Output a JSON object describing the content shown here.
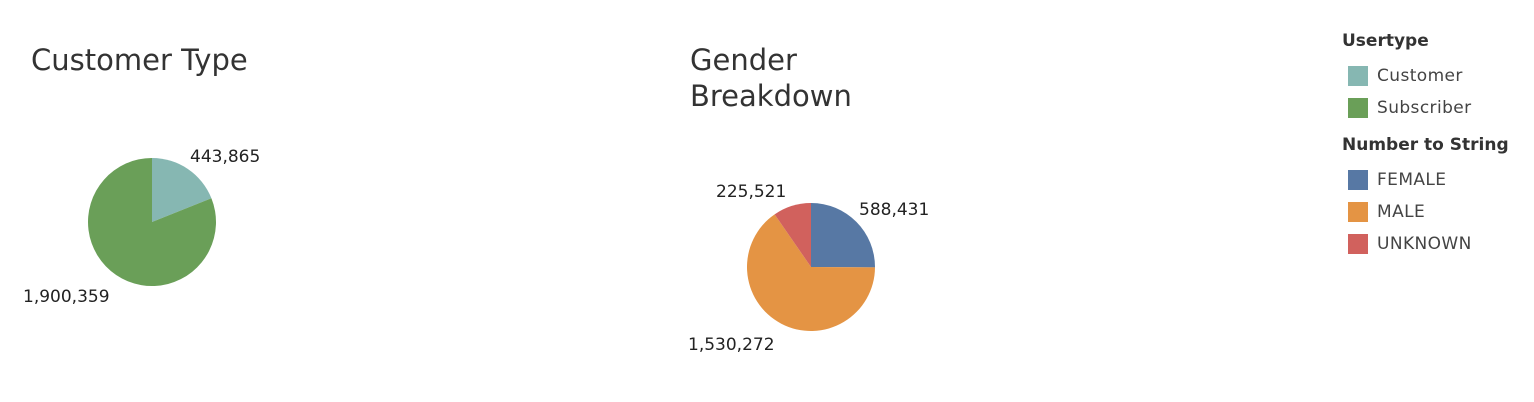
{
  "chart_data": [
    {
      "type": "pie",
      "title": "Customer Type",
      "slices": [
        {
          "name": "Customer",
          "value": 443865,
          "label": "443,865",
          "color": "#86b7b2"
        },
        {
          "name": "Subscriber",
          "value": 1900359,
          "label": "1,900,359",
          "color": "#6a9f58"
        }
      ]
    },
    {
      "type": "pie",
      "title": "Gender Breakdown",
      "slices": [
        {
          "name": "FEMALE",
          "value": 588431,
          "label": "588,431",
          "color": "#5778a4"
        },
        {
          "name": "MALE",
          "value": 1530272,
          "label": "1,530,272",
          "color": "#e49444"
        },
        {
          "name": "UNKNOWN",
          "value": 225521,
          "label": "225,521",
          "color": "#d1615d"
        }
      ]
    }
  ],
  "legend": {
    "groups": [
      {
        "title": "Usertype",
        "items": [
          {
            "label": "Customer",
            "color": "#86b7b2"
          },
          {
            "label": "Subscriber",
            "color": "#6a9f58"
          }
        ]
      },
      {
        "title": "Number to String",
        "items": [
          {
            "label": "FEMALE",
            "color": "#5778a4"
          },
          {
            "label": "MALE",
            "color": "#e49444"
          },
          {
            "label": "UNKNOWN",
            "color": "#d1615d"
          }
        ]
      }
    ]
  }
}
